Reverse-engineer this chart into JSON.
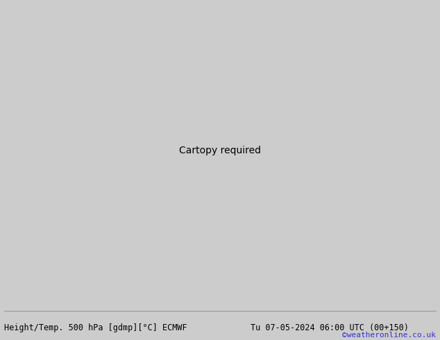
{
  "title_left": "Height/Temp. 500 hPa [gdmp][°C] ECMWF",
  "title_right": "Tu 07-05-2024 06:00 UTC (00+150)",
  "credit": "©weatheronline.co.uk",
  "fig_width": 6.34,
  "fig_height": 4.9,
  "dpi": 100,
  "title_fontsize": 8.5,
  "credit_fontsize": 8,
  "credit_color": "#3333cc",
  "map_bg": "#dddddd",
  "land_green": "#b8e8a0",
  "land_gray": "#c8c8c8",
  "sea": "#e0e0e0",
  "border_lw": 0.4,
  "border_color": "#888888",
  "black": "#000000",
  "orange": "#e08000",
  "red": "#cc0000",
  "cyan": "#00aaaa",
  "ygreen": "#88cc00",
  "contour_lw_thick": 2.0,
  "contour_lw_mid": 1.5,
  "contour_lw_thin": 1.0,
  "lon_min": 85,
  "lon_max": 175,
  "lat_min": -20,
  "lat_max": 60
}
